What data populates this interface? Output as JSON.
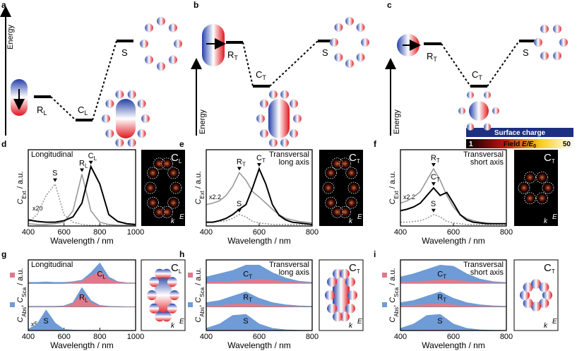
{
  "energy": [
    {
      "panel": "a",
      "axis": "Energy",
      "levels": [
        {
          "main": "R",
          "sub": "L"
        },
        {
          "main": "C",
          "sub": "L"
        },
        {
          "main": "S"
        }
      ]
    },
    {
      "panel": "b",
      "axis": "Energy",
      "levels": [
        {
          "main": "R",
          "sub": "T"
        },
        {
          "main": "C",
          "sub": "T"
        },
        {
          "main": "S"
        }
      ]
    },
    {
      "panel": "c",
      "axis": "Energy",
      "levels": [
        {
          "main": "R",
          "sub": "T"
        },
        {
          "main": "C",
          "sub": "T"
        },
        {
          "main": "S"
        }
      ]
    }
  ],
  "legend": {
    "surface_charge": "Surface charge",
    "field_min": "1",
    "field": "Field",
    "ratio": "E/E",
    "ratio_sub": "0",
    "field_max": "50"
  },
  "chart_data": [
    {
      "type": "line",
      "panel": "d",
      "title": [
        "Longitudinal"
      ],
      "annotation": "x20",
      "xlabel": "Wavelength / nm",
      "ylabel": [
        {
          "text": "C"
        },
        {
          "text": "Ext",
          "sub": true
        },
        {
          "text": " / a.u."
        }
      ],
      "xlim": [
        400,
        1000
      ],
      "xticks": [
        400,
        600,
        800,
        1000
      ],
      "ylim": [
        0,
        1
      ],
      "x": [
        400,
        450,
        500,
        550,
        600,
        650,
        700,
        750,
        800,
        850,
        900,
        950,
        1000
      ],
      "series": [
        {
          "name": "S",
          "color": "#999999",
          "linestyle": "dotted",
          "values": [
            0.05,
            0.15,
            0.4,
            0.55,
            0.15,
            0.05,
            0.02,
            0.01,
            0.01,
            0.01,
            0.01,
            0.01,
            0.01
          ]
        },
        {
          "name": "R",
          "name_sub": "L",
          "color": "#999999",
          "linestyle": "solid",
          "values": [
            0.03,
            0.02,
            0.02,
            0.03,
            0.05,
            0.2,
            0.68,
            0.2,
            0.05,
            0.02,
            0.01,
            0.01,
            0.01
          ]
        },
        {
          "name": "C",
          "name_sub": "L",
          "color": "#000000",
          "linestyle": "solid",
          "values": [
            0.08,
            0.06,
            0.05,
            0.05,
            0.07,
            0.12,
            0.3,
            0.78,
            0.55,
            0.15,
            0.06,
            0.03,
            0.02
          ]
        }
      ],
      "image": {
        "main": "C",
        "sub": "L",
        "k": "k",
        "E": "E"
      }
    },
    {
      "type": "line",
      "panel": "e",
      "title": [
        "Transversal",
        "long axis"
      ],
      "annotation": "x2.2",
      "xlabel": "Wavelength / nm",
      "ylabel": [
        {
          "text": "C"
        },
        {
          "text": "Ext",
          "sub": true
        },
        {
          "text": " / a.u."
        }
      ],
      "xlim": [
        400,
        800
      ],
      "xticks": [
        400,
        600,
        800
      ],
      "ylim": [
        0,
        1
      ],
      "x": [
        400,
        425,
        450,
        475,
        500,
        525,
        550,
        575,
        600,
        625,
        650,
        675,
        700,
        725,
        750,
        775,
        800
      ],
      "series": [
        {
          "name": "S",
          "color": "#999999",
          "linestyle": "dotted",
          "values": [
            0.05,
            0.05,
            0.06,
            0.07,
            0.1,
            0.15,
            0.12,
            0.06,
            0.04,
            0.03,
            0.02,
            0.02,
            0.02,
            0.02,
            0.02,
            0.02,
            0.02
          ]
        },
        {
          "name": "R",
          "name_sub": "T",
          "color": "#999999",
          "linestyle": "solid",
          "values": [
            0.28,
            0.3,
            0.33,
            0.4,
            0.52,
            0.7,
            0.6,
            0.45,
            0.38,
            0.3,
            0.22,
            0.15,
            0.1,
            0.08,
            0.06,
            0.05,
            0.04
          ]
        },
        {
          "name": "C",
          "name_sub": "T",
          "color": "#000000",
          "linestyle": "solid",
          "values": [
            0.05,
            0.05,
            0.07,
            0.1,
            0.15,
            0.22,
            0.28,
            0.5,
            0.75,
            0.55,
            0.28,
            0.14,
            0.08,
            0.05,
            0.04,
            0.03,
            0.02
          ]
        }
      ],
      "image": {
        "main": "C",
        "sub": "T",
        "k": "k",
        "E": "E"
      }
    },
    {
      "type": "line",
      "panel": "f",
      "title": [
        "Transversal",
        "short axis"
      ],
      "annotation": "x2.2",
      "xlabel": "Wavelength / nm",
      "ylabel": [
        {
          "text": "C"
        },
        {
          "text": "Ext",
          "sub": true
        },
        {
          "text": " / a.u."
        }
      ],
      "xlim": [
        400,
        800
      ],
      "xticks": [
        400,
        600,
        800
      ],
      "ylim": [
        0,
        1
      ],
      "x": [
        400,
        425,
        450,
        475,
        500,
        525,
        550,
        575,
        600,
        625,
        650,
        675,
        700,
        725,
        750,
        775,
        800
      ],
      "series": [
        {
          "name": "S",
          "color": "#999999",
          "linestyle": "dotted",
          "values": [
            0.05,
            0.05,
            0.06,
            0.07,
            0.1,
            0.15,
            0.12,
            0.06,
            0.04,
            0.03,
            0.02,
            0.02,
            0.02,
            0.02,
            0.02,
            0.02,
            0.02
          ]
        },
        {
          "name": "R",
          "name_sub": "T",
          "color": "#999999",
          "linestyle": "solid",
          "values": [
            0.3,
            0.33,
            0.38,
            0.45,
            0.6,
            0.75,
            0.6,
            0.4,
            0.25,
            0.15,
            0.1,
            0.07,
            0.05,
            0.04,
            0.03,
            0.03,
            0.03
          ]
        },
        {
          "name": "C",
          "name_sub": "T",
          "color": "#000000",
          "linestyle": "solid",
          "values": [
            0.2,
            0.22,
            0.25,
            0.3,
            0.4,
            0.5,
            0.4,
            0.44,
            0.3,
            0.15,
            0.08,
            0.05,
            0.04,
            0.03,
            0.03,
            0.03,
            0.03
          ]
        }
      ],
      "image": {
        "main": "C",
        "sub": "T",
        "k": "k",
        "E": "E"
      }
    },
    {
      "type": "area",
      "panel": "g",
      "title": [
        "Longitudinal"
      ],
      "annotation": "x5",
      "abs_color": "#6f9bd6",
      "sca_color": "#e0788c",
      "xlabel": "Wavelength / nm",
      "ylabel": [
        {
          "text": "C"
        },
        {
          "text": "Abs",
          "sub": true
        },
        {
          "text": ", "
        },
        {
          "text": "C"
        },
        {
          "text": "Sca",
          "sub": true
        },
        {
          "text": " / a.u."
        }
      ],
      "xlim": [
        400,
        1000
      ],
      "xticks": [
        400,
        600,
        800,
        1000
      ],
      "ylim": [
        0,
        1
      ],
      "x": [
        400,
        450,
        500,
        550,
        600,
        650,
        700,
        750,
        800,
        850,
        900,
        950,
        1000
      ],
      "rows": [
        {
          "name": "C",
          "name_sub": "L",
          "abs": [
            0.05,
            0.05,
            0.07,
            0.05,
            0.05,
            0.08,
            0.15,
            0.5,
            0.95,
            0.3,
            0.08,
            0.03,
            0.02
          ],
          "sca": [
            0,
            0,
            0,
            0,
            0,
            0.03,
            0.1,
            0.35,
            0.55,
            0.2,
            0.05,
            0.02,
            0.01
          ]
        },
        {
          "name": "R",
          "name_sub": "L",
          "abs": [
            0.03,
            0.03,
            0.03,
            0.03,
            0.05,
            0.2,
            0.9,
            0.3,
            0.07,
            0.03,
            0.02,
            0.01,
            0.01
          ],
          "sca": [
            0,
            0,
            0,
            0,
            0.02,
            0.15,
            0.6,
            0.2,
            0.04,
            0.01,
            0,
            0,
            0
          ]
        },
        {
          "name": "S",
          "abs": [
            0.05,
            0.3,
            0.95,
            0.35,
            0.05,
            0.02,
            0.01,
            0.01,
            0,
            0,
            0,
            0,
            0
          ],
          "sca": [
            0,
            0,
            0.02,
            0.01,
            0,
            0,
            0,
            0,
            0,
            0,
            0,
            0,
            0
          ]
        }
      ],
      "image": {
        "main": "C",
        "sub": "L",
        "k": "k",
        "E": "E"
      }
    },
    {
      "type": "area",
      "panel": "h",
      "title": [
        "Transversal",
        "long axis"
      ],
      "abs_color": "#6f9bd6",
      "sca_color": "#e0788c",
      "xlabel": "Wavelength / nm",
      "ylabel": [
        {
          "text": "C"
        },
        {
          "text": "Abs",
          "sub": true
        },
        {
          "text": ", "
        },
        {
          "text": "C"
        },
        {
          "text": "Sca",
          "sub": true
        },
        {
          "text": " / a.u."
        }
      ],
      "xlim": [
        400,
        800
      ],
      "xticks": [
        400,
        600,
        800
      ],
      "ylim": [
        0,
        1
      ],
      "x": [
        400,
        450,
        500,
        550,
        600,
        650,
        700,
        750,
        800
      ],
      "rows": [
        {
          "name": "C",
          "name_sub": "T",
          "abs": [
            0.3,
            0.45,
            0.6,
            0.85,
            0.85,
            0.5,
            0.25,
            0.1,
            0.05
          ],
          "sca": [
            0.05,
            0.08,
            0.1,
            0.15,
            0.2,
            0.15,
            0.08,
            0.03,
            0.01
          ]
        },
        {
          "name": "R",
          "name_sub": "T",
          "abs": [
            0.2,
            0.3,
            0.5,
            0.7,
            0.4,
            0.2,
            0.1,
            0.05,
            0.03
          ],
          "sca": [
            0.05,
            0.07,
            0.12,
            0.15,
            0.1,
            0.05,
            0.02,
            0.01,
            0
          ]
        },
        {
          "name": "S",
          "abs": [
            0.1,
            0.3,
            0.7,
            0.75,
            0.3,
            0.1,
            0.03,
            0.01,
            0
          ],
          "sca": [
            0,
            0.01,
            0.02,
            0.02,
            0.01,
            0,
            0,
            0,
            0
          ]
        }
      ],
      "image": {
        "main": "C",
        "sub": "T",
        "k": "k",
        "E": "E"
      }
    },
    {
      "type": "area",
      "panel": "i",
      "title": [
        "Transversal",
        "short axis"
      ],
      "abs_color": "#6f9bd6",
      "sca_color": "#e0788c",
      "xlabel": "Wavelength / nm",
      "ylabel": [
        {
          "text": "C"
        },
        {
          "text": "Abs",
          "sub": true
        },
        {
          "text": ", "
        },
        {
          "text": "C"
        },
        {
          "text": "Sca",
          "sub": true
        },
        {
          "text": " / a.u."
        }
      ],
      "xlim": [
        400,
        800
      ],
      "xticks": [
        400,
        600,
        800
      ],
      "ylim": [
        0,
        1
      ],
      "x": [
        400,
        450,
        500,
        550,
        600,
        650,
        700,
        750,
        800
      ],
      "rows": [
        {
          "name": "C",
          "name_sub": "T",
          "abs": [
            0.3,
            0.45,
            0.65,
            0.85,
            0.8,
            0.45,
            0.2,
            0.08,
            0.04
          ],
          "sca": [
            0.05,
            0.08,
            0.12,
            0.15,
            0.15,
            0.1,
            0.05,
            0.02,
            0.01
          ]
        },
        {
          "name": "R",
          "name_sub": "T",
          "abs": [
            0.2,
            0.3,
            0.5,
            0.7,
            0.4,
            0.2,
            0.1,
            0.05,
            0.03
          ],
          "sca": [
            0.05,
            0.07,
            0.12,
            0.15,
            0.1,
            0.05,
            0.02,
            0.01,
            0
          ]
        },
        {
          "name": "S",
          "abs": [
            0.1,
            0.3,
            0.7,
            0.75,
            0.3,
            0.1,
            0.03,
            0.01,
            0
          ],
          "sca": [
            0,
            0.01,
            0.02,
            0.02,
            0.01,
            0,
            0,
            0,
            0
          ]
        }
      ],
      "image": {
        "main": "C",
        "sub": "T",
        "k": "k",
        "E": "E"
      }
    }
  ]
}
